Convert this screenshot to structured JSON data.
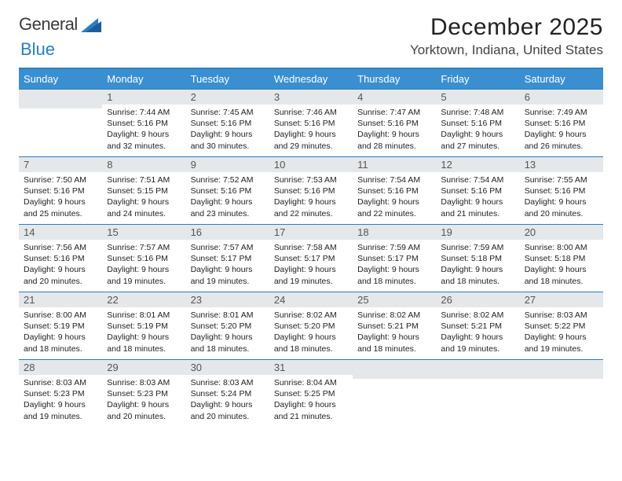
{
  "logo": {
    "text1": "General",
    "text2": "Blue"
  },
  "title": "December 2025",
  "location": "Yorktown, Indiana, United States",
  "colors": {
    "headerBg": "#3a8fd0",
    "borderTop": "#2b7ec1",
    "dayBg": "#e4e8eb",
    "text": "#222222"
  },
  "weekdays": [
    "Sunday",
    "Monday",
    "Tuesday",
    "Wednesday",
    "Thursday",
    "Friday",
    "Saturday"
  ],
  "layout": {
    "firstDayOffset": 1,
    "daysInMonth": 31,
    "weeks": 5
  },
  "days": [
    {
      "n": 1,
      "sr": "7:44 AM",
      "ss": "5:16 PM",
      "dl": "9 hours and 32 minutes."
    },
    {
      "n": 2,
      "sr": "7:45 AM",
      "ss": "5:16 PM",
      "dl": "9 hours and 30 minutes."
    },
    {
      "n": 3,
      "sr": "7:46 AM",
      "ss": "5:16 PM",
      "dl": "9 hours and 29 minutes."
    },
    {
      "n": 4,
      "sr": "7:47 AM",
      "ss": "5:16 PM",
      "dl": "9 hours and 28 minutes."
    },
    {
      "n": 5,
      "sr": "7:48 AM",
      "ss": "5:16 PM",
      "dl": "9 hours and 27 minutes."
    },
    {
      "n": 6,
      "sr": "7:49 AM",
      "ss": "5:16 PM",
      "dl": "9 hours and 26 minutes."
    },
    {
      "n": 7,
      "sr": "7:50 AM",
      "ss": "5:16 PM",
      "dl": "9 hours and 25 minutes."
    },
    {
      "n": 8,
      "sr": "7:51 AM",
      "ss": "5:15 PM",
      "dl": "9 hours and 24 minutes."
    },
    {
      "n": 9,
      "sr": "7:52 AM",
      "ss": "5:16 PM",
      "dl": "9 hours and 23 minutes."
    },
    {
      "n": 10,
      "sr": "7:53 AM",
      "ss": "5:16 PM",
      "dl": "9 hours and 22 minutes."
    },
    {
      "n": 11,
      "sr": "7:54 AM",
      "ss": "5:16 PM",
      "dl": "9 hours and 22 minutes."
    },
    {
      "n": 12,
      "sr": "7:54 AM",
      "ss": "5:16 PM",
      "dl": "9 hours and 21 minutes."
    },
    {
      "n": 13,
      "sr": "7:55 AM",
      "ss": "5:16 PM",
      "dl": "9 hours and 20 minutes."
    },
    {
      "n": 14,
      "sr": "7:56 AM",
      "ss": "5:16 PM",
      "dl": "9 hours and 20 minutes."
    },
    {
      "n": 15,
      "sr": "7:57 AM",
      "ss": "5:16 PM",
      "dl": "9 hours and 19 minutes."
    },
    {
      "n": 16,
      "sr": "7:57 AM",
      "ss": "5:17 PM",
      "dl": "9 hours and 19 minutes."
    },
    {
      "n": 17,
      "sr": "7:58 AM",
      "ss": "5:17 PM",
      "dl": "9 hours and 19 minutes."
    },
    {
      "n": 18,
      "sr": "7:59 AM",
      "ss": "5:17 PM",
      "dl": "9 hours and 18 minutes."
    },
    {
      "n": 19,
      "sr": "7:59 AM",
      "ss": "5:18 PM",
      "dl": "9 hours and 18 minutes."
    },
    {
      "n": 20,
      "sr": "8:00 AM",
      "ss": "5:18 PM",
      "dl": "9 hours and 18 minutes."
    },
    {
      "n": 21,
      "sr": "8:00 AM",
      "ss": "5:19 PM",
      "dl": "9 hours and 18 minutes."
    },
    {
      "n": 22,
      "sr": "8:01 AM",
      "ss": "5:19 PM",
      "dl": "9 hours and 18 minutes."
    },
    {
      "n": 23,
      "sr": "8:01 AM",
      "ss": "5:20 PM",
      "dl": "9 hours and 18 minutes."
    },
    {
      "n": 24,
      "sr": "8:02 AM",
      "ss": "5:20 PM",
      "dl": "9 hours and 18 minutes."
    },
    {
      "n": 25,
      "sr": "8:02 AM",
      "ss": "5:21 PM",
      "dl": "9 hours and 18 minutes."
    },
    {
      "n": 26,
      "sr": "8:02 AM",
      "ss": "5:21 PM",
      "dl": "9 hours and 19 minutes."
    },
    {
      "n": 27,
      "sr": "8:03 AM",
      "ss": "5:22 PM",
      "dl": "9 hours and 19 minutes."
    },
    {
      "n": 28,
      "sr": "8:03 AM",
      "ss": "5:23 PM",
      "dl": "9 hours and 19 minutes."
    },
    {
      "n": 29,
      "sr": "8:03 AM",
      "ss": "5:23 PM",
      "dl": "9 hours and 20 minutes."
    },
    {
      "n": 30,
      "sr": "8:03 AM",
      "ss": "5:24 PM",
      "dl": "9 hours and 20 minutes."
    },
    {
      "n": 31,
      "sr": "8:04 AM",
      "ss": "5:25 PM",
      "dl": "9 hours and 21 minutes."
    }
  ],
  "labels": {
    "sunrise": "Sunrise:",
    "sunset": "Sunset:",
    "daylight": "Daylight:"
  }
}
